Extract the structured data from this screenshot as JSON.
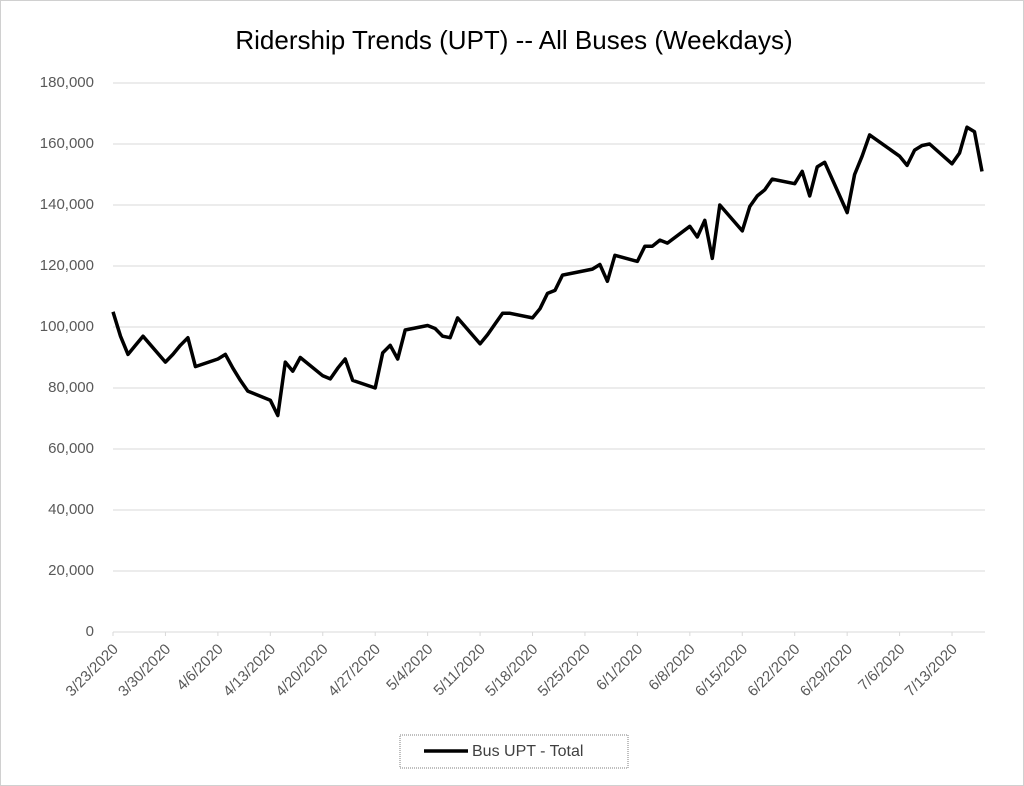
{
  "chart_data": {
    "type": "line",
    "title": "Ridership Trends (UPT) -- All Buses (Weekdays)",
    "x": [
      "3/23/2020",
      "3/24/2020",
      "3/25/2020",
      "3/26/2020",
      "3/27/2020",
      "3/30/2020",
      "3/31/2020",
      "4/1/2020",
      "4/2/2020",
      "4/3/2020",
      "4/6/2020",
      "4/7/2020",
      "4/8/2020",
      "4/9/2020",
      "4/10/2020",
      "4/13/2020",
      "4/14/2020",
      "4/15/2020",
      "4/16/2020",
      "4/17/2020",
      "4/20/2020",
      "4/21/2020",
      "4/22/2020",
      "4/23/2020",
      "4/24/2020",
      "4/27/2020",
      "4/28/2020",
      "4/29/2020",
      "4/30/2020",
      "5/1/2020",
      "5/4/2020",
      "5/5/2020",
      "5/6/2020",
      "5/7/2020",
      "5/8/2020",
      "5/11/2020",
      "5/12/2020",
      "5/13/2020",
      "5/14/2020",
      "5/15/2020",
      "5/18/2020",
      "5/19/2020",
      "5/20/2020",
      "5/21/2020",
      "5/22/2020",
      "5/25/2020",
      "5/26/2020",
      "5/27/2020",
      "5/28/2020",
      "5/29/2020",
      "6/1/2020",
      "6/2/2020",
      "6/3/2020",
      "6/4/2020",
      "6/5/2020",
      "6/8/2020",
      "6/9/2020",
      "6/10/2020",
      "6/11/2020",
      "6/12/2020",
      "6/15/2020",
      "6/16/2020",
      "6/17/2020",
      "6/18/2020",
      "6/19/2020",
      "6/22/2020",
      "6/23/2020",
      "6/24/2020",
      "6/25/2020",
      "6/26/2020",
      "6/29/2020",
      "6/30/2020",
      "7/1/2020",
      "7/2/2020",
      "7/6/2020",
      "7/7/2020",
      "7/8/2020",
      "7/9/2020",
      "7/10/2020",
      "7/13/2020",
      "7/14/2020",
      "7/15/2020",
      "7/16/2020",
      "7/17/2020"
    ],
    "series": [
      {
        "name": "Bus UPT - Total",
        "color": "#000000",
        "values": [
          105000,
          97000,
          91000,
          94000,
          97000,
          88500,
          91000,
          94000,
          96500,
          87000,
          89500,
          91000,
          86500,
          82500,
          79000,
          76000,
          71000,
          88500,
          85500,
          90000,
          84000,
          83000,
          86500,
          89500,
          82500,
          80000,
          91500,
          94000,
          89500,
          99000,
          100500,
          99500,
          97000,
          96500,
          103000,
          94500,
          97500,
          101000,
          104500,
          104500,
          103000,
          106000,
          111000,
          112000,
          117000,
          118500,
          119000,
          120500,
          115000,
          123500,
          121500,
          126500,
          126500,
          128500,
          127500,
          133000,
          129500,
          135000,
          122500,
          140000,
          131500,
          139500,
          143000,
          145000,
          148500,
          147000,
          151000,
          143000,
          152500,
          154000,
          137500,
          150000,
          156000,
          163000,
          156000,
          153000,
          158000,
          159500,
          160000,
          153500,
          157000,
          165500,
          164000,
          151000
        ]
      }
    ],
    "xlim": [
      "3/23/2020",
      "7/17/2020"
    ],
    "xticks": [
      "3/23/2020",
      "3/30/2020",
      "4/6/2020",
      "4/13/2020",
      "4/20/2020",
      "4/27/2020",
      "5/4/2020",
      "5/11/2020",
      "5/18/2020",
      "5/25/2020",
      "6/1/2020",
      "6/8/2020",
      "6/15/2020",
      "6/22/2020",
      "6/29/2020",
      "7/6/2020",
      "7/13/2020"
    ],
    "ylim": [
      0,
      180000
    ],
    "yticks": [
      {
        "value": 0,
        "label": "0"
      },
      {
        "value": 20000,
        "label": "20,000"
      },
      {
        "value": 40000,
        "label": "40,000"
      },
      {
        "value": 60000,
        "label": "60,000"
      },
      {
        "value": 80000,
        "label": "80,000"
      },
      {
        "value": 100000,
        "label": "100,000"
      },
      {
        "value": 120000,
        "label": "120,000"
      },
      {
        "value": 140000,
        "label": "140,000"
      },
      {
        "value": 160000,
        "label": "160,000"
      },
      {
        "value": 180000,
        "label": "180,000"
      }
    ],
    "grid": true,
    "legend": "bottom"
  }
}
